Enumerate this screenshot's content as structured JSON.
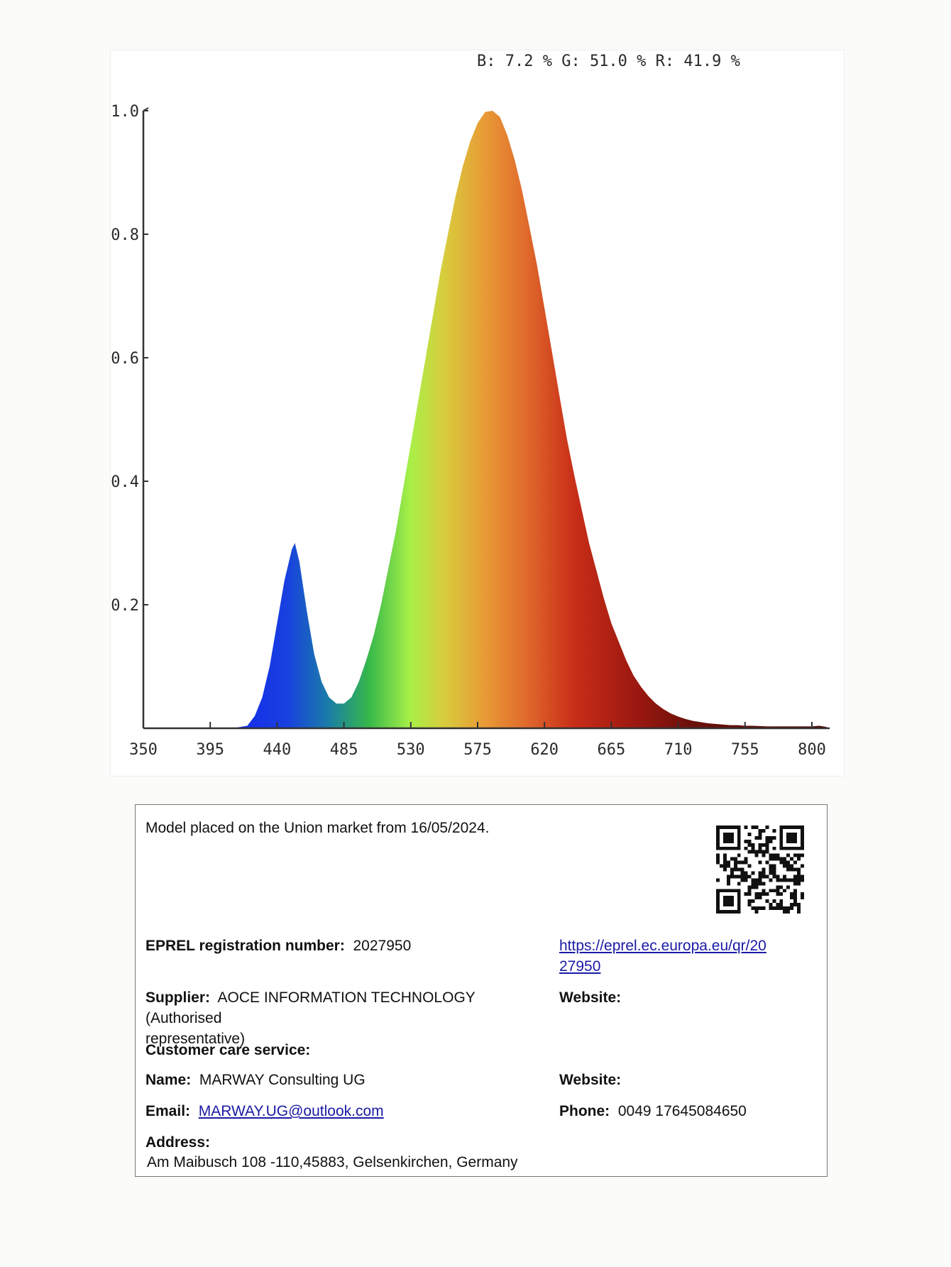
{
  "chart_data": {
    "type": "area",
    "title": "",
    "xlabel": "",
    "ylabel": "",
    "rgb_summary": "B: 7.2 %  G: 51.0 %  R: 41.9 %",
    "x_ticks": [
      "350",
      "395",
      "440",
      "485",
      "530",
      "575",
      "620",
      "665",
      "710",
      "755",
      "800"
    ],
    "y_ticks": [
      "0.2",
      "0.4",
      "0.6",
      "0.8",
      "1.0"
    ],
    "xlim": [
      350,
      812
    ],
    "ylim": [
      0,
      1.0
    ],
    "grid": false,
    "series": [
      {
        "x": [
          350,
          410,
          420,
          425,
          430,
          435,
          440,
          445,
          450,
          452,
          455,
          460,
          465,
          470,
          475,
          480,
          485,
          490,
          495,
          500,
          505,
          510,
          515,
          520,
          525,
          530,
          535,
          540,
          545,
          550,
          555,
          560,
          565,
          570,
          575,
          580,
          585,
          590,
          595,
          600,
          605,
          610,
          615,
          620,
          625,
          630,
          635,
          640,
          645,
          650,
          655,
          660,
          665,
          670,
          675,
          680,
          685,
          690,
          695,
          700,
          705,
          710,
          715,
          720,
          725,
          730,
          735,
          740,
          745,
          750,
          755,
          760,
          770,
          780,
          790,
          800,
          805,
          810
        ],
        "y": [
          0.0,
          0.0,
          0.004,
          0.02,
          0.05,
          0.1,
          0.17,
          0.24,
          0.29,
          0.3,
          0.27,
          0.19,
          0.12,
          0.075,
          0.05,
          0.04,
          0.04,
          0.05,
          0.075,
          0.11,
          0.15,
          0.2,
          0.26,
          0.32,
          0.39,
          0.46,
          0.53,
          0.6,
          0.67,
          0.74,
          0.8,
          0.86,
          0.91,
          0.95,
          0.98,
          0.998,
          1.0,
          0.99,
          0.96,
          0.92,
          0.87,
          0.81,
          0.75,
          0.68,
          0.61,
          0.54,
          0.47,
          0.41,
          0.355,
          0.3,
          0.255,
          0.21,
          0.17,
          0.14,
          0.11,
          0.085,
          0.067,
          0.052,
          0.04,
          0.031,
          0.024,
          0.019,
          0.015,
          0.012,
          0.01,
          0.008,
          0.007,
          0.006,
          0.005,
          0.005,
          0.004,
          0.004,
          0.003,
          0.003,
          0.003,
          0.003,
          0.004,
          0.002
        ]
      }
    ]
  },
  "info": {
    "placed_on_market": "Model placed on the Union market from 16/05/2024.",
    "eprel_label": "EPREL registration number:",
    "eprel_value": "2027950",
    "eprel_link_line1": "https://eprel.ec.europa.eu/qr/20",
    "eprel_link_line2": "27950",
    "supplier_label": "Supplier:",
    "supplier_value_line1": "AOCE INFORMATION TECHNOLOGY (Authorised",
    "supplier_value_line2": "representative)",
    "supplier_website_label": "Website:",
    "customer_care_label": "Customer care service:",
    "name_label": "Name:",
    "name_value": "MARWAY Consulting UG",
    "name_website_label": "Website:",
    "email_label": "Email:",
    "email_value": "MARWAY.UG@outlook.com",
    "phone_label": "Phone:",
    "phone_value": "0049 17645084650",
    "address_label": "Address:",
    "address_value": "Am Maibusch 108 -110,45883, Gelsenkirchen, Germany",
    "qr_icon": "qr-code-icon"
  }
}
